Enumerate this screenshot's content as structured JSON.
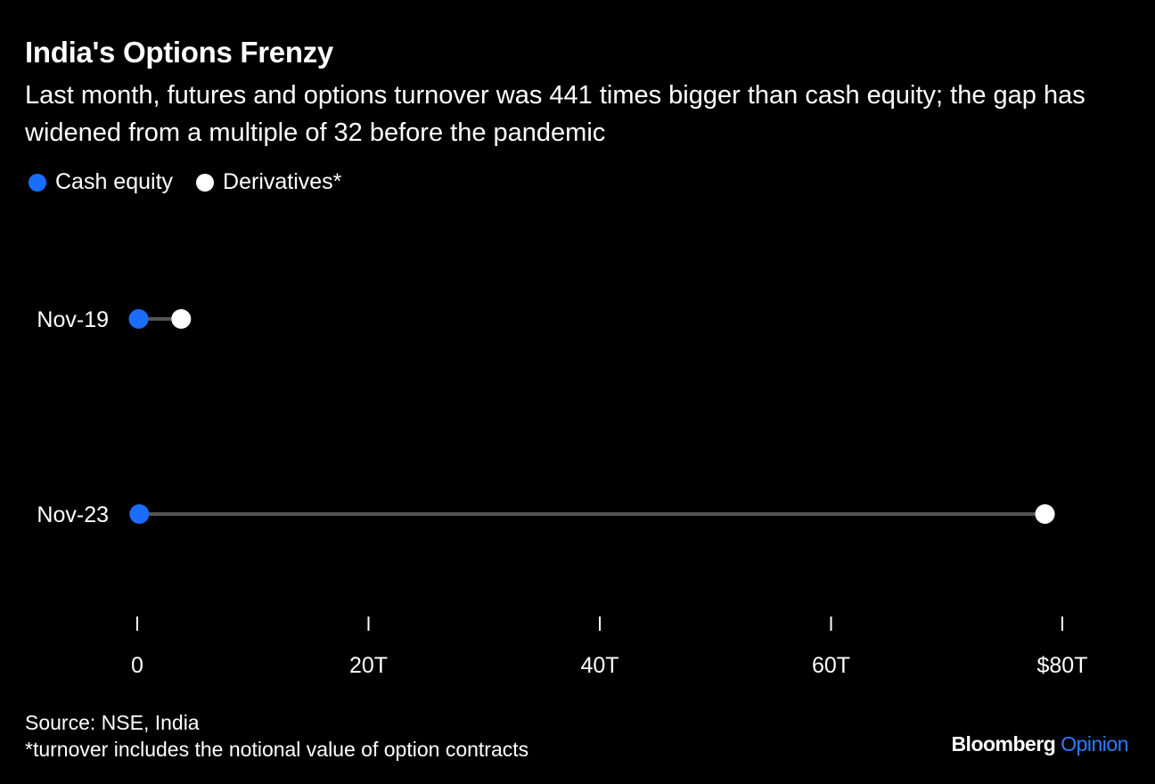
{
  "chart_data": {
    "type": "dumbbell",
    "title": "India's Options Frenzy",
    "subtitle": "Last month, futures and options turnover was 441 times bigger than cash equity; the gap has widened from a multiple of 32 before the pandemic",
    "categories": [
      "Nov-19",
      "Nov-23"
    ],
    "series": [
      {
        "name": "Cash equity",
        "color": "#1a6dff",
        "values": [
          0.12,
          0.18
        ]
      },
      {
        "name": "Derivatives*",
        "color": "#ffffff",
        "values": [
          3.8,
          78.5
        ]
      }
    ],
    "xlim": [
      0,
      80
    ],
    "xticks": [
      0,
      20,
      40,
      60,
      80
    ],
    "xtick_labels": [
      "0",
      "20T",
      "40T",
      "60T",
      "$80T"
    ],
    "connector_color": "#555555",
    "legend_position": "top-left"
  },
  "footer": {
    "source": "Source: NSE, India",
    "note": "*turnover includes the notional value of option contracts"
  },
  "brand": {
    "name": "Bloomberg",
    "suffix": "Opinion",
    "suffix_color": "#2f7bff"
  }
}
